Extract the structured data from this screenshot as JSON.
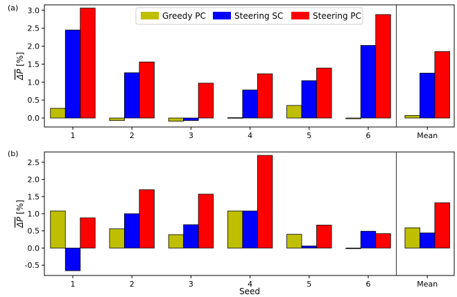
{
  "chart_data": {
    "type": "bar",
    "categories": [
      "1",
      "2",
      "3",
      "4",
      "5",
      "6",
      "Mean"
    ],
    "xlabel": "Seed",
    "ylabel_main": "ΔP",
    "ylabel_unit": " [%]",
    "legend": [
      "Greedy PC",
      "Steering SC",
      "Steering PC"
    ],
    "colors": {
      "Greedy PC": "#bfbf00",
      "Steering SC": "#0000ff",
      "Steering PC": "#ff0000"
    },
    "panels": [
      {
        "label": "(a)",
        "ylim": [
          -0.25,
          3.15
        ],
        "yticks": [
          "0.0",
          "0.5",
          "1.0",
          "1.5",
          "2.0",
          "2.5",
          "3.0"
        ],
        "series": [
          {
            "name": "Greedy PC",
            "values": [
              0.27,
              -0.07,
              -0.09,
              0.01,
              0.35,
              -0.02,
              0.07
            ]
          },
          {
            "name": "Steering SC",
            "values": [
              2.45,
              1.26,
              -0.07,
              0.78,
              1.04,
              2.02,
              1.25
            ]
          },
          {
            "name": "Steering PC",
            "values": [
              3.06,
              1.56,
              0.97,
              1.23,
              1.39,
              2.88,
              1.85
            ]
          }
        ]
      },
      {
        "label": "(b)",
        "ylim": [
          -0.8,
          2.8
        ],
        "yticks": [
          "-0.5",
          "0.0",
          "0.5",
          "1.0",
          "1.5",
          "2.0",
          "2.5"
        ],
        "series": [
          {
            "name": "Greedy PC",
            "values": [
              1.08,
              0.56,
              0.39,
              1.08,
              0.4,
              -0.01,
              0.59
            ]
          },
          {
            "name": "Steering SC",
            "values": [
              -0.66,
              1.0,
              0.68,
              1.08,
              0.06,
              0.49,
              0.44
            ]
          },
          {
            "name": "Steering PC",
            "values": [
              0.88,
              1.7,
              1.57,
              2.7,
              0.67,
              0.42,
              1.32
            ]
          }
        ]
      }
    ],
    "grid": false,
    "legend_position": "top-center"
  }
}
